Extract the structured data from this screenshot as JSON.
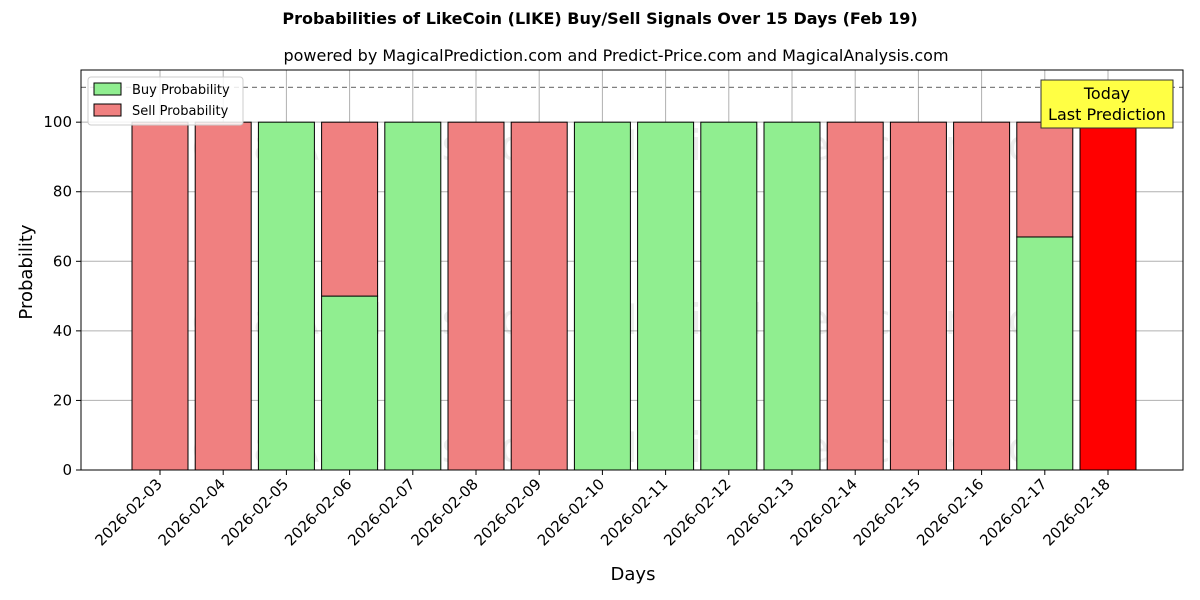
{
  "chart_data": {
    "type": "bar",
    "stacked": true,
    "title": "Probabilities of LikeCoin (LIKE) Buy/Sell Signals Over 15 Days (Feb 19)",
    "subtitle": "powered by MagicalPrediction.com and Predict-Price.com and MagicalAnalysis.com",
    "xlabel": "Days",
    "ylabel": "Probability",
    "ylim": [
      0,
      115
    ],
    "yticks": [
      0,
      20,
      40,
      60,
      80,
      100
    ],
    "grid": true,
    "legend_position": "top-left",
    "categories": [
      "2026-02-03",
      "2026-02-04",
      "2026-02-05",
      "2026-02-06",
      "2026-02-07",
      "2026-02-08",
      "2026-02-09",
      "2026-02-10",
      "2026-02-11",
      "2026-02-12",
      "2026-02-13",
      "2026-02-14",
      "2026-02-15",
      "2026-02-16",
      "2026-02-17",
      "2026-02-18"
    ],
    "series": [
      {
        "name": "Buy Probability",
        "color": "#90ee90",
        "values": [
          0,
          0,
          100,
          50,
          100,
          0,
          0,
          100,
          100,
          100,
          100,
          0,
          0,
          0,
          67,
          0
        ]
      },
      {
        "name": "Sell Probability",
        "color": "#f08080",
        "values": [
          100,
          100,
          0,
          50,
          0,
          100,
          100,
          0,
          0,
          0,
          0,
          100,
          100,
          100,
          33,
          0
        ]
      }
    ],
    "last_prediction": {
      "category": "2026-02-18",
      "value": 100,
      "color": "#ff0000"
    },
    "reference_line": {
      "y": 110,
      "style": "dashed",
      "color": "#808080"
    },
    "annotation": {
      "line1": "Today",
      "line2": "Last Prediction",
      "background": "#ffff44"
    },
    "watermarks": [
      "MagicalAnalysis.com",
      "MagicalPrediction.com"
    ]
  }
}
